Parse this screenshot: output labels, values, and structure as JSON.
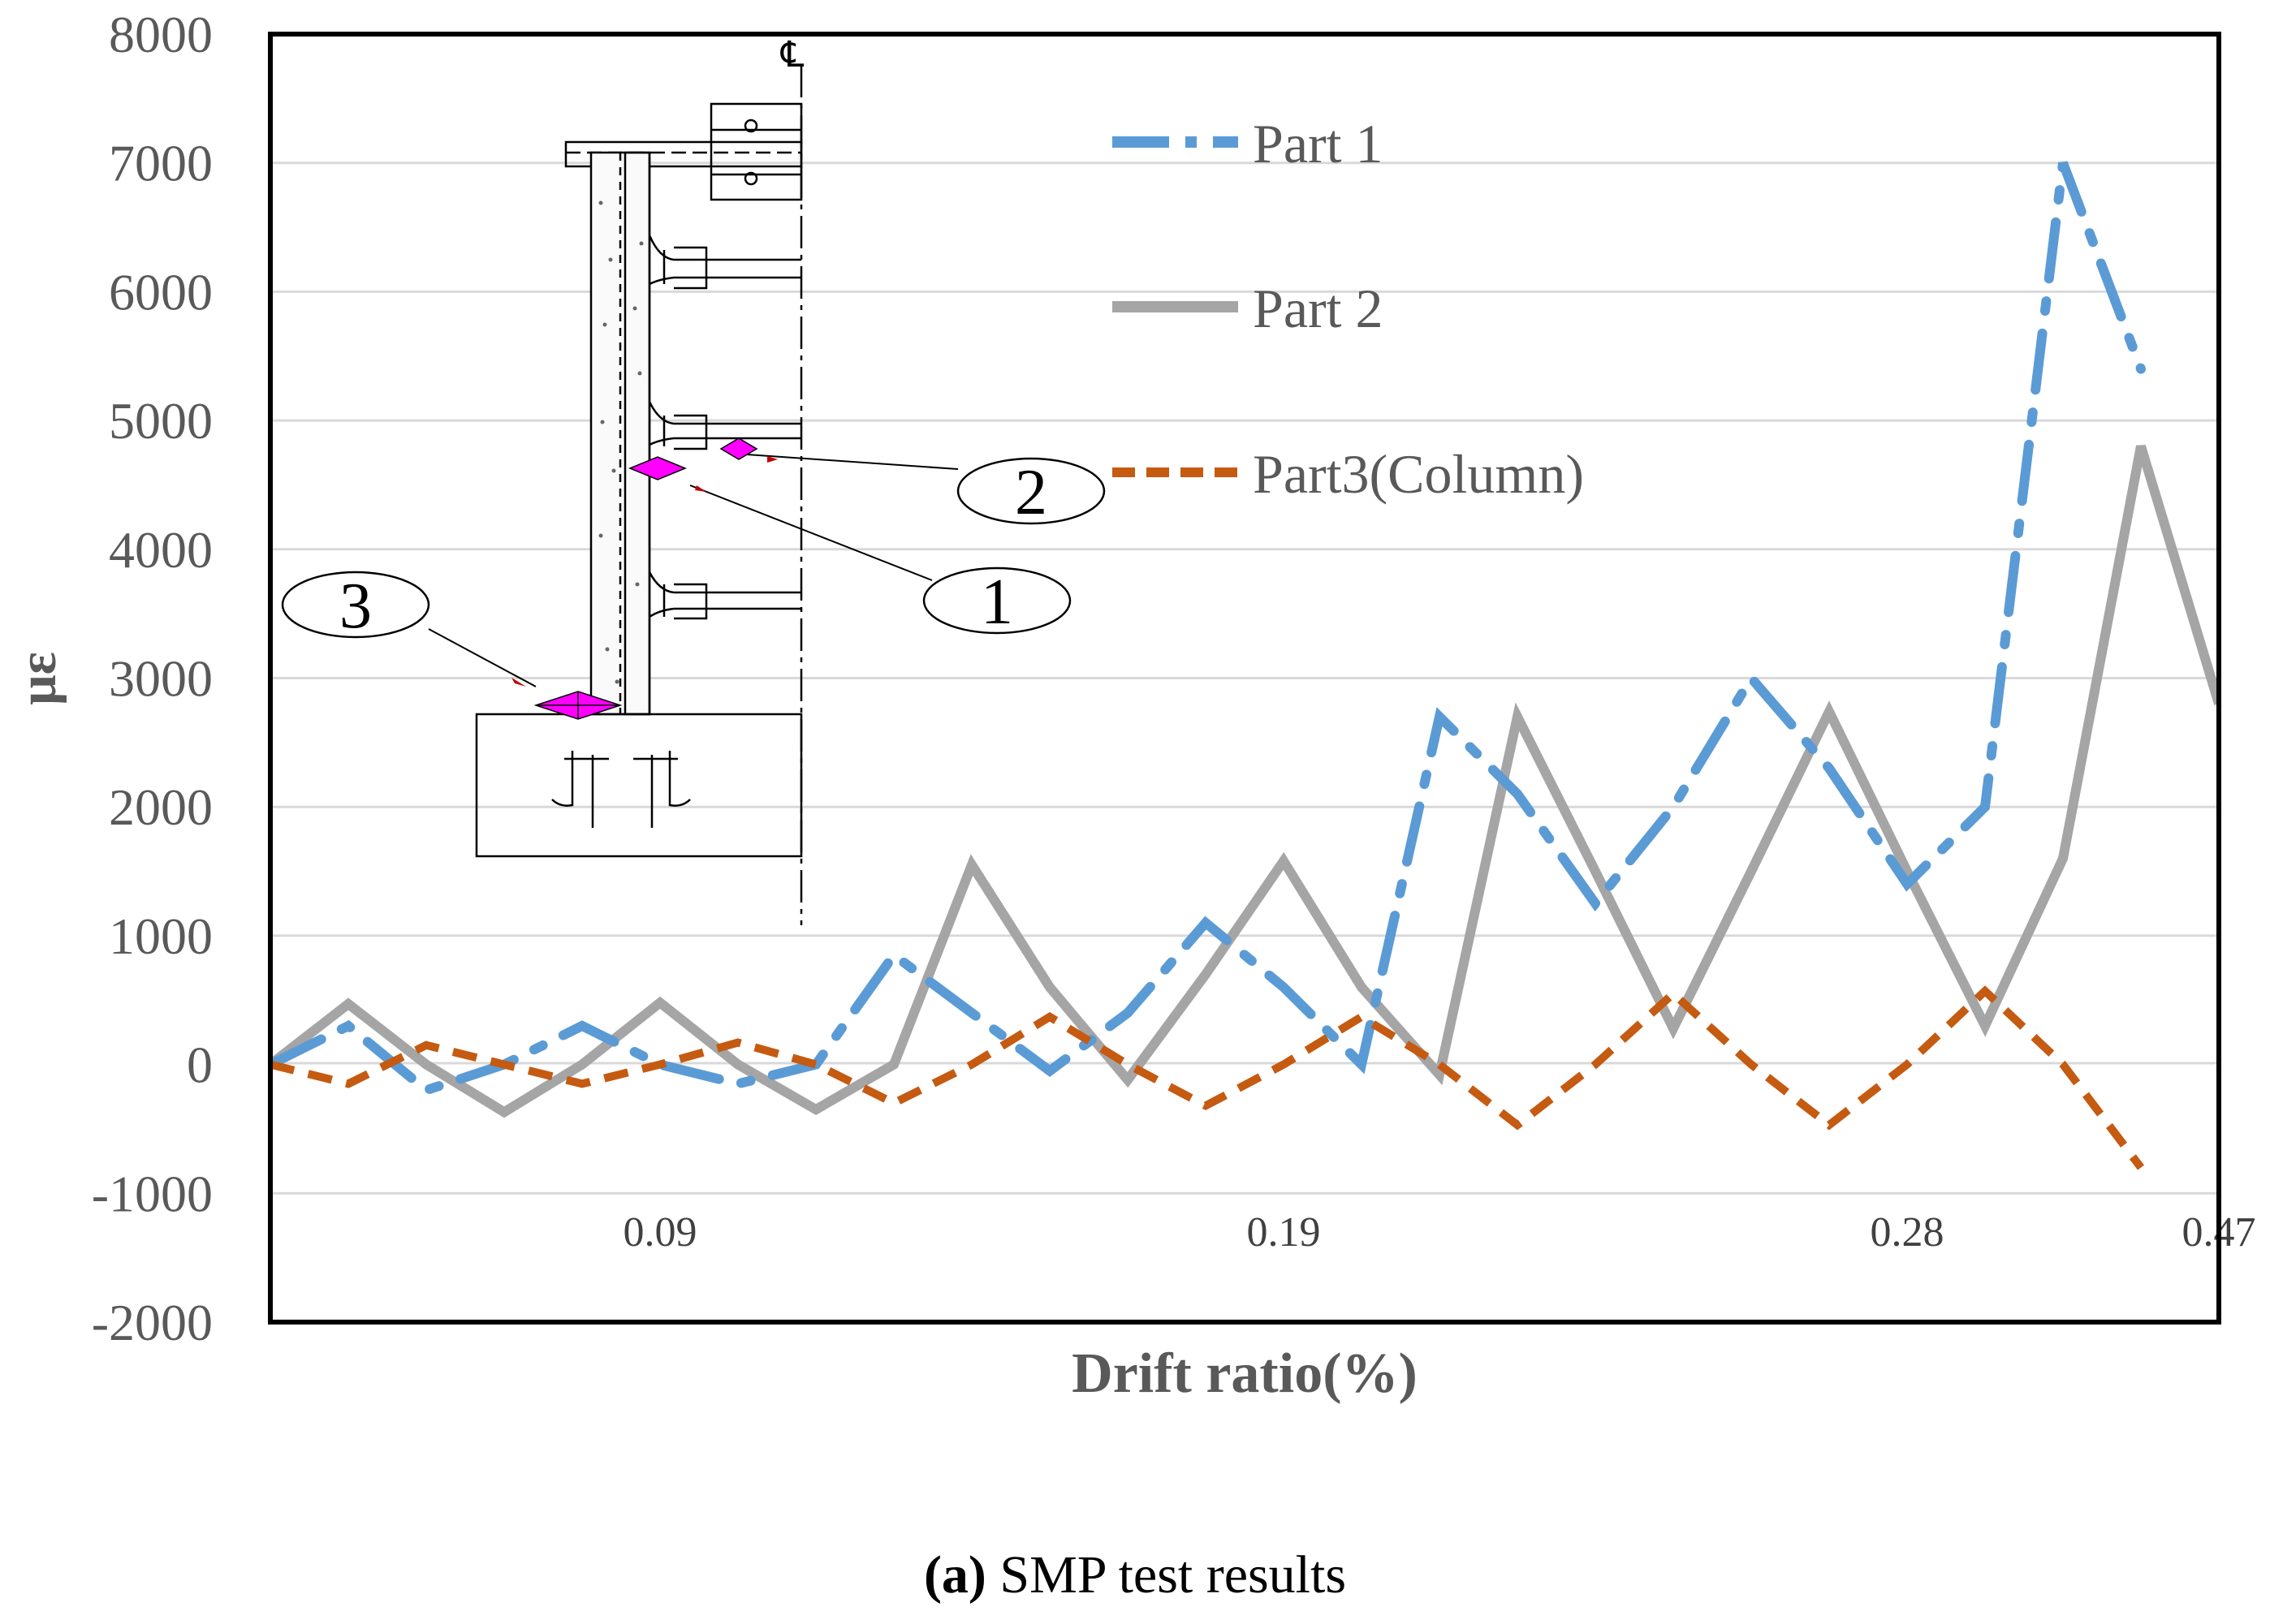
{
  "chart_data": {
    "type": "line",
    "title": "",
    "xlabel": "Drift ratio(%)",
    "ylabel": "με",
    "ylim": [
      -2000,
      8000
    ],
    "yticks": [
      "8000",
      "7000",
      "6000",
      "5000",
      "4000",
      "3000",
      "2000",
      "1000",
      "0",
      "-1000",
      "-2000"
    ],
    "x_tick_labels": [
      {
        "label": "0.09",
        "index": 5
      },
      {
        "label": "0.19",
        "index": 13
      },
      {
        "label": "0.28",
        "index": 21
      },
      {
        "label": "0.47",
        "index": 25
      }
    ],
    "grid": true,
    "legend_position": "top-right",
    "series": [
      {
        "name": "Part 1",
        "style": "dash-dot",
        "color": "#5B9BD5",
        "values": [
          0,
          300,
          -200,
          0,
          300,
          0,
          -150,
          0,
          850,
          400,
          -50,
          400,
          1100,
          600,
          0,
          2700,
          2100,
          1250,
          2000,
          3000,
          2300,
          1400,
          2000,
          7000,
          5400
        ]
      },
      {
        "name": "Part 2",
        "style": "solid",
        "color": "#A5A5A5",
        "values": [
          0,
          470,
          0,
          -370,
          0,
          480,
          0,
          -350,
          0,
          1550,
          600,
          -120,
          700,
          1580,
          600,
          -80,
          2700,
          1500,
          280,
          1500,
          2740,
          1500,
          300,
          1600,
          4800,
          2800
        ]
      },
      {
        "name": "Part3(Column)",
        "style": "dashed",
        "color": "#C55A11",
        "values": [
          0,
          -150,
          150,
          0,
          -150,
          0,
          170,
          0,
          -300,
          0,
          370,
          0,
          -320,
          0,
          370,
          0,
          -470,
          0,
          550,
          0,
          -470,
          0,
          570,
          0,
          -800
        ]
      }
    ]
  },
  "legend": {
    "items": [
      "Part 1",
      "Part 2",
      "Part3(Column)"
    ]
  },
  "inset_diagram": {
    "centerline_symbol": "℄",
    "callouts": [
      "2",
      "1",
      "3"
    ]
  },
  "caption": {
    "prefix": "(a)",
    "text": " SMP test results"
  },
  "colors": {
    "part1": "#5B9BD5",
    "part2": "#A5A5A5",
    "part3": "#C55A11",
    "marker": "#FF00FF",
    "grid": "#D9D9D9"
  }
}
